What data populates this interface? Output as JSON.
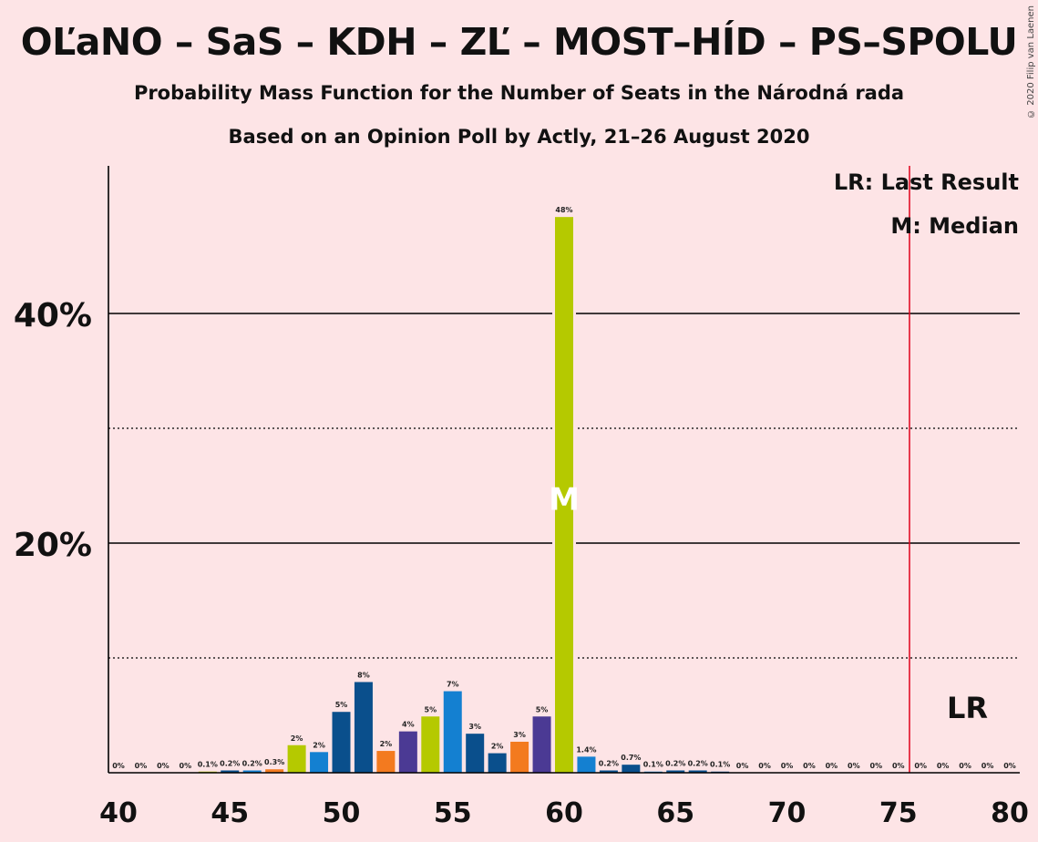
{
  "header": {
    "title": "OĽaNO – SaS – KDH – ZĽ – MOST–HÍD – PS–SPOLU",
    "subtitle": "Probability Mass Function for the Number of Seats in the Národná rada",
    "subtitle2": "Based on an Opinion Poll by Actly, 21–26 August 2020",
    "copyright": "© 2020 Filip van Laenen"
  },
  "legend": {
    "lr": "LR: Last Result",
    "m": "M: Median"
  },
  "chart_data": {
    "type": "bar",
    "x": [
      40,
      41,
      42,
      43,
      44,
      45,
      46,
      47,
      48,
      49,
      50,
      51,
      52,
      53,
      54,
      55,
      56,
      57,
      58,
      59,
      60,
      61,
      62,
      63,
      64,
      65,
      66,
      67,
      68,
      69,
      70,
      71,
      72,
      73,
      74,
      75,
      76,
      77,
      78,
      79,
      80
    ],
    "values": [
      0,
      0,
      0,
      0,
      0.1,
      0.2,
      0.2,
      0.3,
      2.4,
      1.8,
      5.3,
      7.9,
      1.9,
      3.6,
      4.9,
      7.1,
      3.4,
      1.7,
      2.7,
      4.9,
      48.4,
      1.4,
      0.2,
      0.7,
      0.1,
      0.2,
      0.2,
      0.1,
      0,
      0,
      0,
      0,
      0,
      0,
      0,
      0,
      0,
      0,
      0,
      0,
      0
    ],
    "labels": [
      "0%",
      "0%",
      "0%",
      "0%",
      "0.1%",
      "0.2%",
      "0.2%",
      "0.3%",
      "2%",
      "2%",
      "5%",
      "8%",
      "2%",
      "4%",
      "5%",
      "7%",
      "3%",
      "2%",
      "3%",
      "5%",
      "48%",
      "1.4%",
      "0.2%",
      "0.7%",
      "0.1%",
      "0.2%",
      "0.2%",
      "0.1%",
      "0%",
      "0%",
      "0%",
      "0%",
      "0%",
      "0%",
      "0%",
      "0%",
      "0%",
      "0%",
      "0%",
      "0%",
      "0%"
    ],
    "colors": [
      "#b5c900",
      "#0a4f8c",
      "#1480d1",
      "#f37a1f",
      "#b5c900",
      "#0a4f8c",
      "#1480d1",
      "#f37a1f",
      "#b5c900",
      "#1480d1",
      "#0a4f8c",
      "#0a4f8c",
      "#f37a1f",
      "#4b3a94",
      "#b5c900",
      "#1480d1",
      "#0a4f8c",
      "#0a4f8c",
      "#f37a1f",
      "#4b3a94",
      "#b5c900",
      "#1480d1",
      "#0a4f8c",
      "#0a4f8c",
      "#1480d1",
      "#0a4f8c",
      "#0a4f8c",
      "#0a4f8c",
      "#0a4f8c",
      "#0a4f8c",
      "#0a4f8c",
      "#0a4f8c",
      "#0a4f8c",
      "#0a4f8c",
      "#0a4f8c",
      "#0a4f8c",
      "#0a4f8c",
      "#0a4f8c",
      "#0a4f8c",
      "#0a4f8c",
      "#0a4f8c"
    ],
    "xlim": [
      40,
      80
    ],
    "ylim": [
      0,
      52
    ],
    "x_ticks": [
      "40",
      "45",
      "50",
      "55",
      "60",
      "65",
      "70",
      "75",
      "80"
    ],
    "y_ticks": [
      "20%",
      "40%"
    ],
    "y_tick_values": [
      20,
      40
    ],
    "minor_gridlines": [
      10,
      30
    ],
    "median": 60,
    "median_label": "M",
    "last_result": 75.5,
    "last_result_label": "LR",
    "last_result_color": "#e0001a"
  }
}
